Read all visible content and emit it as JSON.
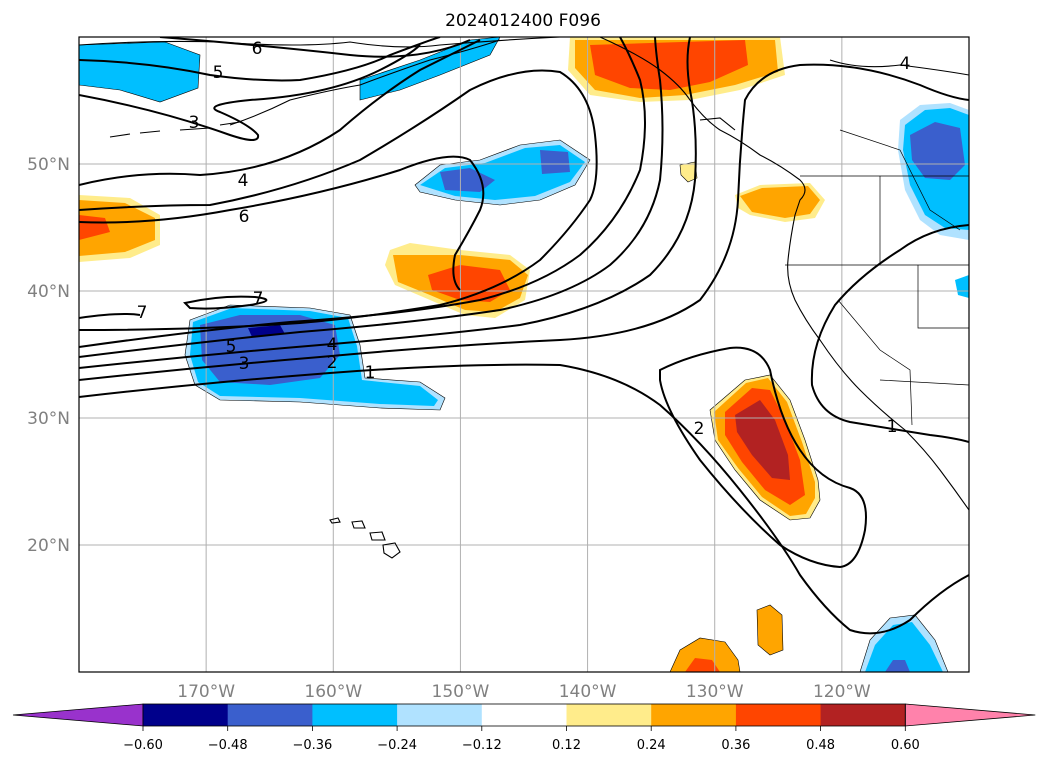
{
  "title": "2024012400 F096",
  "map": {
    "lon_ticks": [
      {
        "lon": -170,
        "label": "170°W"
      },
      {
        "lon": -160,
        "label": "160°W"
      },
      {
        "lon": -150,
        "label": "150°W"
      },
      {
        "lon": -140,
        "label": "140°W"
      },
      {
        "lon": -130,
        "label": "130°W"
      },
      {
        "lon": -120,
        "label": "120°W"
      }
    ],
    "lat_ticks": [
      {
        "lat": 50,
        "label": "50°N"
      },
      {
        "lat": 40,
        "label": "40°N"
      },
      {
        "lat": 30,
        "label": "30°N"
      },
      {
        "lat": 20,
        "label": "20°N"
      }
    ],
    "extent": {
      "lon_min": -180,
      "lon_max": -110,
      "lat_min": 10,
      "lat_max": 60
    },
    "contour_labels": [
      "6",
      "5",
      "3",
      "4",
      "6",
      "7",
      "7",
      "5",
      "3",
      "4",
      "2",
      "1",
      "2",
      "1",
      "4"
    ]
  },
  "colorbar": {
    "levels": [
      "−0.60",
      "−0.48",
      "−0.36",
      "−0.24",
      "−0.12",
      "0.12",
      "0.24",
      "0.36",
      "0.48",
      "0.60"
    ],
    "colors": [
      "#9932cc",
      "#00008b",
      "#3a5fcd",
      "#00bfff",
      "#b0e2ff",
      "#ffffff",
      "#ffec8b",
      "#ffa500",
      "#ff4500",
      "#b22222",
      "#ff82ab"
    ]
  }
}
